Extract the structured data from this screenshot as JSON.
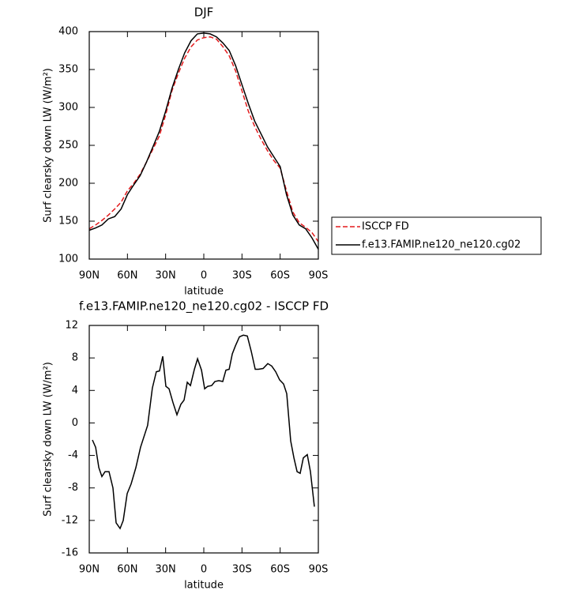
{
  "chart_data": [
    {
      "type": "line",
      "title": "DJF",
      "x_label": "latitude",
      "y_label": "Surf clearsky down LW (W/m²)",
      "xlim": [
        90,
        -90
      ],
      "ylim": [
        100,
        400
      ],
      "xticks": [
        {
          "value": 90,
          "label": "90N"
        },
        {
          "value": 60,
          "label": "60N"
        },
        {
          "value": 30,
          "label": "30N"
        },
        0,
        {
          "value": -30,
          "label": "30S"
        },
        {
          "value": -60,
          "label": "60S"
        },
        {
          "value": -90,
          "label": "90S"
        }
      ],
      "yticks": [
        100,
        150,
        200,
        250,
        300,
        350,
        400
      ],
      "legend": "right",
      "x": [
        90,
        85,
        80,
        75,
        70,
        65,
        60,
        55,
        50,
        45,
        40,
        35,
        30,
        25,
        20,
        15,
        10,
        5,
        0,
        -5,
        -10,
        -15,
        -20,
        -25,
        -30,
        -35,
        -40,
        -45,
        -50,
        -55,
        -60,
        -65,
        -70,
        -75,
        -80,
        -85,
        -90
      ],
      "series": [
        {
          "name": "ISCCP FD",
          "color": "#e31a1c",
          "dash": true,
          "values": [
            140,
            145,
            151,
            158,
            166,
            175,
            190,
            200,
            212,
            228,
            245,
            262,
            290,
            322,
            345,
            365,
            380,
            389,
            392,
            393,
            390,
            380,
            368,
            348,
            322,
            295,
            275,
            258,
            243,
            230,
            220,
            190,
            162,
            148,
            142,
            135,
            123
          ]
        },
        {
          "name": "f.e13.FAMIP.ne120_ne120.cg02",
          "color": "#000000",
          "dash": false,
          "values": [
            138,
            141,
            145,
            153,
            156,
            166,
            185,
            198,
            210,
            228,
            248,
            268,
            295,
            325,
            350,
            372,
            388,
            397,
            398,
            397,
            393,
            385,
            375,
            355,
            330,
            305,
            282,
            265,
            248,
            235,
            222,
            185,
            158,
            145,
            140,
            128,
            113
          ]
        }
      ]
    },
    {
      "type": "line",
      "title": "f.e13.FAMIP.ne120_ne120.cg02 - ISCCP FD",
      "x_label": "latitude",
      "y_label": "Surf clearsky down LW (W/m²)",
      "xlim": [
        90,
        -90
      ],
      "ylim": [
        -16,
        12
      ],
      "xticks": [
        {
          "value": 90,
          "label": "90N"
        },
        {
          "value": 60,
          "label": "60N"
        },
        {
          "value": 30,
          "label": "30N"
        },
        0,
        {
          "value": -30,
          "label": "30S"
        },
        {
          "value": -60,
          "label": "60S"
        },
        {
          "value": -90,
          "label": "90S"
        }
      ],
      "yticks": [
        -16,
        -12,
        -8,
        -4,
        0,
        4,
        8,
        12
      ],
      "x": [
        87.5,
        85,
        82.5,
        80.1,
        77.6,
        74.5,
        71.4,
        68.9,
        65.8,
        63.3,
        60.2,
        57.1,
        53.4,
        49.7,
        44.1,
        40.4,
        37.3,
        34.8,
        32.3,
        29.8,
        27.3,
        24.2,
        21.1,
        18,
        15.5,
        13,
        10.5,
        7.4,
        4.9,
        1.8,
        -0.7,
        -3.1,
        -6.2,
        -8.7,
        -11.8,
        -14.9,
        -17.4,
        -19.9,
        -22.4,
        -24.9,
        -28,
        -31.1,
        -34.2,
        -37.3,
        -40.4,
        -42.9,
        -46.6,
        -50.3,
        -53.4,
        -56.5,
        -59.6,
        -62.7,
        -65.2,
        -68.3,
        -70.8,
        -73.3,
        -75.7,
        -78.2,
        -81.3,
        -83.8,
        -86.9
      ],
      "series": [
        {
          "color": "#000000",
          "dash": false,
          "values": [
            -2.1,
            -3,
            -5.5,
            -6.6,
            -6,
            -6,
            -8,
            -12.3,
            -13,
            -12,
            -8.7,
            -7.5,
            -5.5,
            -3,
            -0.3,
            4.3,
            6.3,
            6.4,
            8.2,
            4.5,
            4.2,
            2.5,
            1,
            2.3,
            2.8,
            5,
            4.6,
            6.6,
            7.9,
            6.5,
            4.2,
            4.5,
            4.6,
            5.1,
            5.2,
            5.1,
            6.5,
            6.6,
            8.5,
            9.5,
            10.6,
            10.8,
            10.7,
            8.8,
            6.6,
            6.6,
            6.7,
            7.3,
            7,
            6.3,
            5.3,
            4.8,
            3.6,
            -2.2,
            -4.3,
            -6,
            -6.2,
            -4.3,
            -3.9,
            -6,
            -10.3
          ]
        }
      ]
    }
  ]
}
